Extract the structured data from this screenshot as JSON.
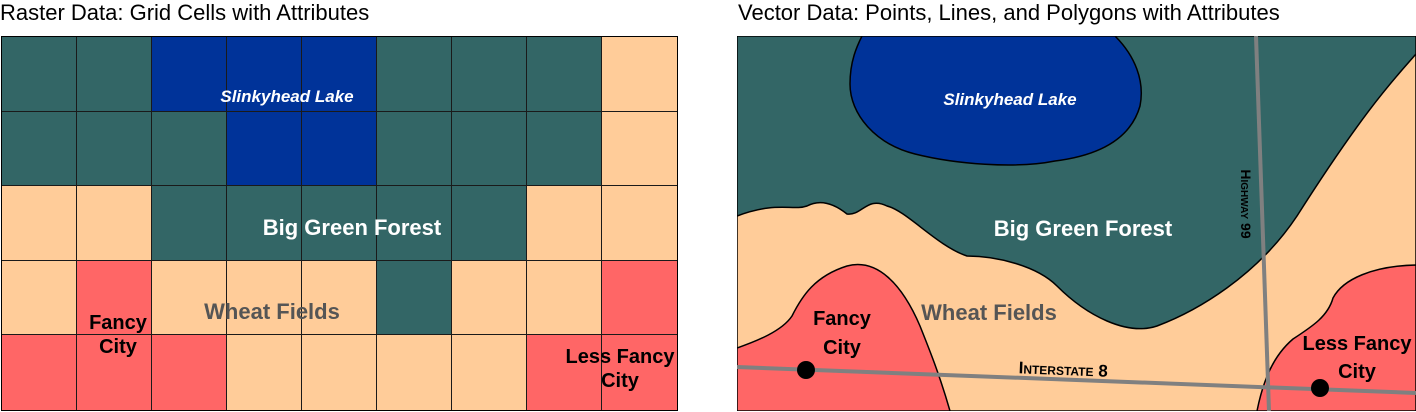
{
  "raster": {
    "title": "Raster Data: Grid Cells with Attributes",
    "grid": [
      [
        "forest",
        "forest",
        "lake",
        "lake",
        "lake",
        "forest",
        "forest",
        "forest",
        "fields"
      ],
      [
        "forest",
        "forest",
        "forest",
        "lake",
        "lake",
        "forest",
        "forest",
        "forest",
        "fields"
      ],
      [
        "fields",
        "fields",
        "forest",
        "forest",
        "forest",
        "forest",
        "forest",
        "fields",
        "fields"
      ],
      [
        "fields",
        "city",
        "fields",
        "fields",
        "fields",
        "forest",
        "fields",
        "fields",
        "city"
      ],
      [
        "city",
        "city",
        "city",
        "fields",
        "fields",
        "fields",
        "fields",
        "city",
        "city"
      ]
    ],
    "labels": {
      "lake": "Slinkyhead Lake",
      "forest": "Big Green Forest",
      "fields": "Wheat Fields",
      "city_line1": "Fancy",
      "city_line2": "City",
      "less_city_line1": "Less Fancy",
      "less_city_line2": "City"
    }
  },
  "vector": {
    "title": "Vector Data: Points, Lines, and Polygons with Attributes",
    "labels": {
      "lake": "Slinkyhead Lake",
      "forest": "Big Green Forest",
      "fields": "Wheat Fields",
      "city_line1": "Fancy",
      "city_line2": "City",
      "less_city_line1": "Less Fancy",
      "less_city_line2": "City",
      "highway": "Highway 99",
      "interstate": "Interstate 8"
    }
  },
  "colors": {
    "forest": "#336666",
    "lake": "#003399",
    "fields": "#FFCC99",
    "city": "#FF6666",
    "road": "#808080",
    "fields_text": "#555555"
  }
}
